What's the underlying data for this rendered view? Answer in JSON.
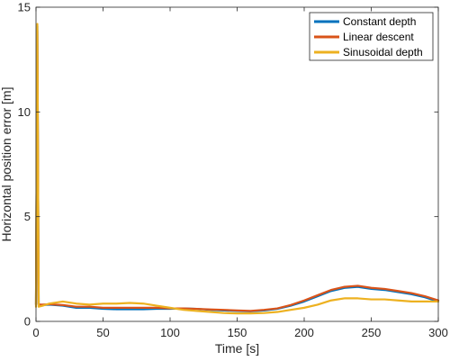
{
  "chart_data": {
    "type": "line",
    "title": "",
    "xlabel": "Time [s]",
    "ylabel": "Horizontal position error [m]",
    "xlim": [
      0,
      300
    ],
    "ylim": [
      0,
      15
    ],
    "xticks": [
      0,
      50,
      100,
      150,
      200,
      250,
      300
    ],
    "yticks": [
      0,
      5,
      10,
      15
    ],
    "grid": false,
    "legend_position": "top-right",
    "series": [
      {
        "name": "Constant depth",
        "color": "#0072BD",
        "x": [
          0,
          1,
          2,
          5,
          10,
          20,
          30,
          40,
          50,
          60,
          70,
          80,
          90,
          100,
          110,
          120,
          130,
          140,
          150,
          160,
          170,
          180,
          190,
          200,
          210,
          220,
          230,
          240,
          250,
          260,
          270,
          280,
          290,
          300
        ],
        "y": [
          0.8,
          14.1,
          0.8,
          0.78,
          0.8,
          0.75,
          0.65,
          0.65,
          0.6,
          0.58,
          0.58,
          0.58,
          0.6,
          0.6,
          0.62,
          0.6,
          0.55,
          0.52,
          0.5,
          0.48,
          0.52,
          0.6,
          0.75,
          0.95,
          1.2,
          1.45,
          1.6,
          1.65,
          1.55,
          1.5,
          1.4,
          1.3,
          1.15,
          0.95
        ]
      },
      {
        "name": "Linear descent",
        "color": "#D95319",
        "x": [
          0,
          1,
          2,
          5,
          10,
          20,
          30,
          40,
          50,
          60,
          70,
          80,
          90,
          100,
          110,
          120,
          130,
          140,
          150,
          160,
          170,
          180,
          190,
          200,
          210,
          220,
          230,
          240,
          250,
          260,
          270,
          280,
          290,
          300
        ],
        "y": [
          0.8,
          13.9,
          0.8,
          0.8,
          0.82,
          0.78,
          0.7,
          0.7,
          0.65,
          0.65,
          0.65,
          0.65,
          0.65,
          0.62,
          0.62,
          0.6,
          0.57,
          0.55,
          0.52,
          0.5,
          0.55,
          0.62,
          0.78,
          1.0,
          1.25,
          1.5,
          1.65,
          1.7,
          1.6,
          1.55,
          1.45,
          1.35,
          1.2,
          1.0
        ]
      },
      {
        "name": "Sinusoidal depth",
        "color": "#EDB120",
        "x": [
          0,
          1,
          2,
          5,
          10,
          20,
          30,
          40,
          50,
          60,
          70,
          80,
          90,
          100,
          110,
          120,
          130,
          140,
          150,
          160,
          170,
          180,
          190,
          200,
          210,
          220,
          230,
          240,
          250,
          260,
          270,
          280,
          290,
          300
        ],
        "y": [
          0.7,
          14.2,
          0.7,
          0.75,
          0.85,
          0.95,
          0.85,
          0.8,
          0.85,
          0.85,
          0.88,
          0.85,
          0.75,
          0.65,
          0.55,
          0.5,
          0.45,
          0.4,
          0.38,
          0.38,
          0.4,
          0.45,
          0.55,
          0.65,
          0.8,
          1.0,
          1.1,
          1.1,
          1.05,
          1.05,
          1.0,
          0.95,
          0.95,
          0.95
        ]
      }
    ]
  }
}
